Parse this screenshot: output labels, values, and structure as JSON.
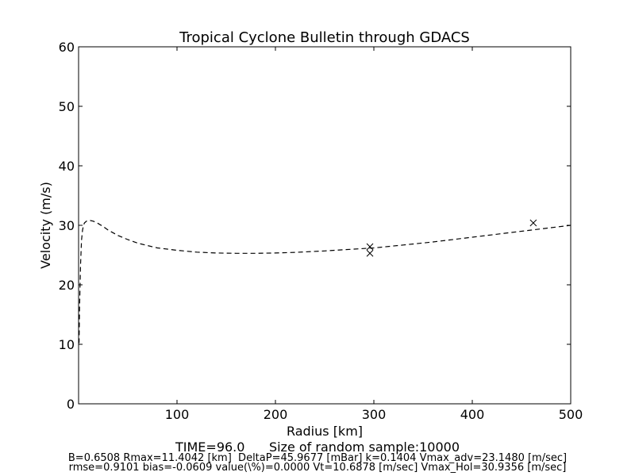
{
  "chart_data": {
    "type": "line",
    "title": "Tropical Cyclone Bulletin through GDACS",
    "xlabel": "Radius [km]",
    "ylabel": "Velocity (m/s)",
    "xlim": [
      0,
      500
    ],
    "ylim": [
      0,
      60
    ],
    "xticks": [
      100,
      200,
      300,
      400,
      500
    ],
    "yticks": [
      0,
      10,
      20,
      30,
      40,
      50,
      60
    ],
    "grid": false,
    "series": [
      {
        "style": "dashed",
        "x": [
          0.5,
          1,
          2,
          3,
          4,
          5,
          6,
          8,
          10,
          12,
          15,
          20,
          25,
          30,
          40,
          50,
          60,
          70,
          80,
          100,
          120,
          140,
          160,
          180,
          200,
          220,
          250,
          280,
          300,
          330,
          360,
          400,
          430,
          460,
          480,
          500
        ],
        "y": [
          10.2,
          16.0,
          23.5,
          27.5,
          29.2,
          30.0,
          30.4,
          30.7,
          30.8,
          30.8,
          30.7,
          30.3,
          29.8,
          29.2,
          28.3,
          27.6,
          27.0,
          26.6,
          26.2,
          25.8,
          25.5,
          25.35,
          25.3,
          25.3,
          25.35,
          25.45,
          25.7,
          26.0,
          26.2,
          26.7,
          27.2,
          28.0,
          28.6,
          29.2,
          29.6,
          30.0
        ]
      },
      {
        "style": "markers-x",
        "x": [
          296,
          296,
          462
        ],
        "y": [
          26.4,
          25.3,
          30.4
        ]
      }
    ]
  },
  "info": {
    "line1": "TIME=96.0      Size of random sample:10000",
    "line2": "B=0.6508 Rmax=11.4042 [km]  DeltaP=45.9677 [mBar] k=0.1404 Vmax_adv=23.1480 [m/sec]",
    "line3": "rmse=0.9101 bias=-0.0609 value(\\%)=0.0000 Vt=10.6878 [m/sec] Vmax_Hol=30.9356 [m/sec]"
  }
}
